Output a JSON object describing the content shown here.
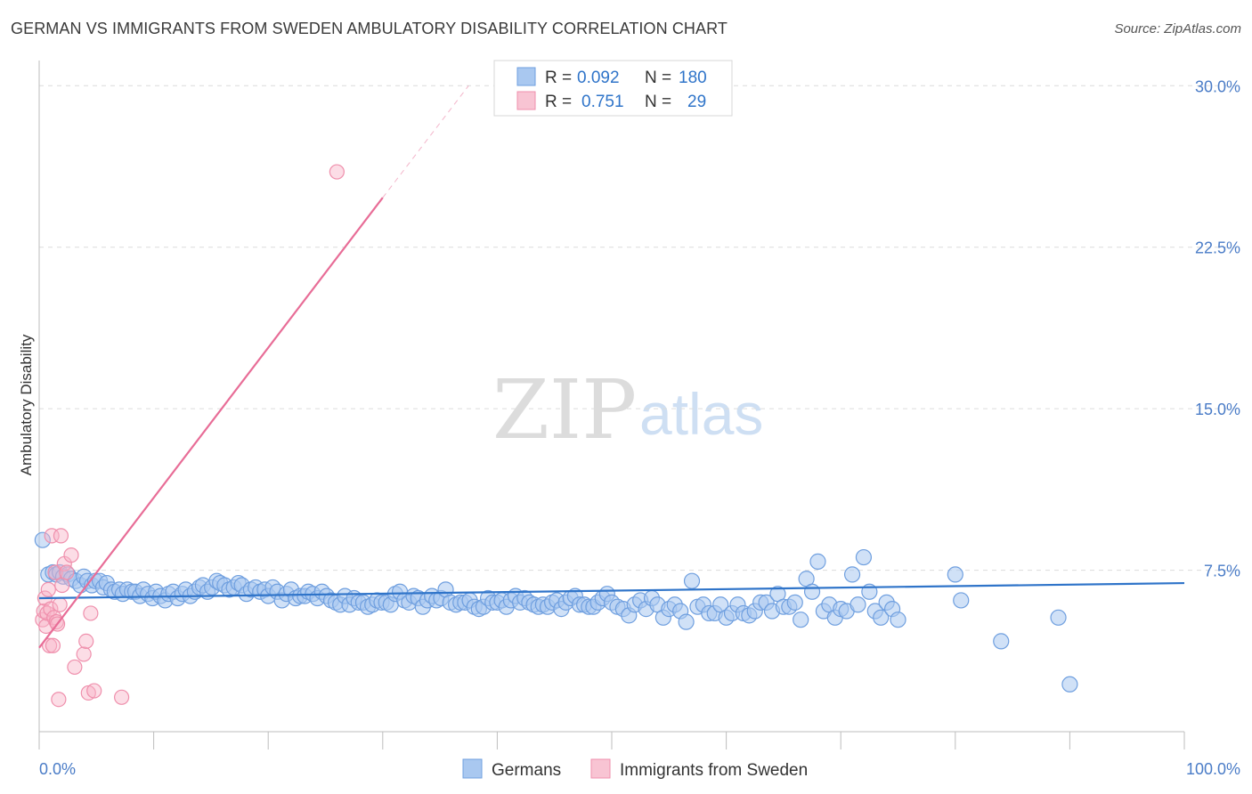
{
  "header": {
    "title": "GERMAN VS IMMIGRANTS FROM SWEDEN AMBULATORY DISABILITY CORRELATION CHART",
    "source": "Source: ZipAtlas.com"
  },
  "watermark": {
    "zip": "ZIP",
    "atlas": "atlas"
  },
  "colors": {
    "blue_fill": "#a9c8f0",
    "blue_stroke": "#6f9fdf",
    "blue_line": "#2f74c9",
    "pink_fill": "#f8b4c8",
    "pink_stroke": "#ef8fac",
    "pink_line": "#e86d97",
    "tick_text": "#4a7cc7",
    "grid": "#dcdcdc"
  },
  "legend": {
    "rows": [
      {
        "r_label": "R =",
        "r_value": "0.092",
        "n_label": "N =",
        "n_value": "180"
      },
      {
        "r_label": "R =",
        "r_value": "0.751",
        "n_label": "N =",
        "n_value": "29"
      }
    ]
  },
  "bottom_legend": {
    "germans": "Germans",
    "sweden": "Immigrants from Sweden"
  },
  "chart_data": {
    "type": "scatter",
    "title": "GERMAN VS IMMIGRANTS FROM SWEDEN AMBULATORY DISABILITY CORRELATION CHART",
    "xlabel": "",
    "ylabel": "Ambulatory Disability",
    "xlim": [
      0,
      100
    ],
    "ylim": [
      0,
      31.5
    ],
    "x_tick_labels": [
      "0.0%",
      "100.0%"
    ],
    "y_ticks": [
      7.5,
      15.0,
      22.5,
      30.0
    ],
    "y_tick_labels": [
      "7.5%",
      "15.0%",
      "22.5%",
      "30.0%"
    ],
    "grid": true,
    "legend_position": "top-center",
    "series": [
      {
        "name": "Germans",
        "color": "#6f9fdf",
        "trend": {
          "x": [
            0,
            100
          ],
          "y": [
            6.2,
            6.9
          ]
        },
        "points": [
          [
            0.3,
            8.9
          ],
          [
            0.8,
            7.3
          ],
          [
            1.2,
            7.4
          ],
          [
            1.5,
            7.3
          ],
          [
            1.8,
            7.4
          ],
          [
            2.1,
            7.2
          ],
          [
            2.5,
            7.3
          ],
          [
            2.8,
            7.1
          ],
          [
            3.2,
            7.0
          ],
          [
            3.6,
            6.8
          ],
          [
            3.9,
            7.2
          ],
          [
            4.2,
            7.0
          ],
          [
            4.6,
            6.8
          ],
          [
            4.9,
            7.0
          ],
          [
            5.3,
            7.0
          ],
          [
            5.6,
            6.7
          ],
          [
            5.9,
            6.9
          ],
          [
            6.3,
            6.6
          ],
          [
            6.6,
            6.5
          ],
          [
            7.0,
            6.6
          ],
          [
            7.3,
            6.4
          ],
          [
            7.7,
            6.6
          ],
          [
            8.1,
            6.5
          ],
          [
            8.4,
            6.5
          ],
          [
            8.8,
            6.3
          ],
          [
            9.1,
            6.6
          ],
          [
            9.5,
            6.4
          ],
          [
            9.9,
            6.2
          ],
          [
            10.2,
            6.5
          ],
          [
            10.6,
            6.3
          ],
          [
            11.0,
            6.1
          ],
          [
            11.3,
            6.4
          ],
          [
            11.7,
            6.5
          ],
          [
            12.1,
            6.2
          ],
          [
            12.5,
            6.4
          ],
          [
            12.8,
            6.6
          ],
          [
            13.2,
            6.3
          ],
          [
            13.6,
            6.5
          ],
          [
            14.0,
            6.7
          ],
          [
            14.3,
            6.8
          ],
          [
            14.7,
            6.5
          ],
          [
            15.1,
            6.7
          ],
          [
            15.5,
            7.0
          ],
          [
            15.8,
            6.9
          ],
          [
            16.2,
            6.8
          ],
          [
            16.6,
            6.6
          ],
          [
            17.0,
            6.7
          ],
          [
            17.4,
            6.9
          ],
          [
            17.7,
            6.8
          ],
          [
            18.1,
            6.4
          ],
          [
            18.5,
            6.6
          ],
          [
            18.9,
            6.7
          ],
          [
            19.3,
            6.5
          ],
          [
            19.7,
            6.6
          ],
          [
            20.0,
            6.3
          ],
          [
            20.4,
            6.7
          ],
          [
            20.8,
            6.5
          ],
          [
            21.2,
            6.1
          ],
          [
            21.6,
            6.4
          ],
          [
            22.0,
            6.6
          ],
          [
            22.4,
            6.2
          ],
          [
            22.8,
            6.3
          ],
          [
            23.2,
            6.3
          ],
          [
            23.5,
            6.5
          ],
          [
            23.9,
            6.4
          ],
          [
            24.3,
            6.2
          ],
          [
            24.7,
            6.5
          ],
          [
            25.1,
            6.3
          ],
          [
            25.5,
            6.1
          ],
          [
            25.9,
            6.0
          ],
          [
            26.3,
            5.9
          ],
          [
            26.7,
            6.3
          ],
          [
            27.1,
            5.9
          ],
          [
            27.5,
            6.2
          ],
          [
            27.9,
            6.0
          ],
          [
            28.3,
            6.0
          ],
          [
            28.7,
            5.8
          ],
          [
            29.1,
            5.9
          ],
          [
            29.5,
            6.1
          ],
          [
            29.9,
            6.0
          ],
          [
            30.3,
            6.0
          ],
          [
            30.7,
            5.9
          ],
          [
            31.1,
            6.4
          ],
          [
            31.5,
            6.5
          ],
          [
            31.9,
            6.1
          ],
          [
            32.3,
            6.0
          ],
          [
            32.7,
            6.3
          ],
          [
            33.1,
            6.2
          ],
          [
            33.5,
            5.8
          ],
          [
            33.9,
            6.1
          ],
          [
            34.3,
            6.3
          ],
          [
            34.7,
            6.1
          ],
          [
            35.1,
            6.2
          ],
          [
            35.5,
            6.6
          ],
          [
            35.9,
            6.0
          ],
          [
            36.4,
            5.9
          ],
          [
            36.8,
            6.0
          ],
          [
            37.2,
            6.0
          ],
          [
            37.6,
            6.1
          ],
          [
            38.0,
            5.8
          ],
          [
            38.4,
            5.7
          ],
          [
            38.8,
            5.8
          ],
          [
            39.2,
            6.2
          ],
          [
            39.6,
            6.0
          ],
          [
            40.0,
            6.0
          ],
          [
            40.4,
            6.1
          ],
          [
            40.8,
            5.8
          ],
          [
            41.2,
            6.1
          ],
          [
            41.6,
            6.3
          ],
          [
            42.0,
            6.0
          ],
          [
            42.4,
            6.2
          ],
          [
            42.8,
            6.0
          ],
          [
            43.2,
            5.9
          ],
          [
            43.6,
            5.8
          ],
          [
            44.0,
            5.9
          ],
          [
            44.4,
            5.8
          ],
          [
            44.8,
            6.0
          ],
          [
            45.2,
            6.1
          ],
          [
            45.6,
            5.7
          ],
          [
            46.0,
            6.0
          ],
          [
            46.4,
            6.2
          ],
          [
            46.8,
            6.3
          ],
          [
            47.2,
            5.9
          ],
          [
            47.6,
            5.9
          ],
          [
            48.0,
            5.8
          ],
          [
            48.4,
            5.8
          ],
          [
            48.8,
            6.0
          ],
          [
            49.2,
            6.2
          ],
          [
            49.6,
            6.4
          ],
          [
            50.0,
            6.0
          ],
          [
            50.5,
            5.8
          ],
          [
            51.0,
            5.7
          ],
          [
            51.5,
            5.4
          ],
          [
            52.0,
            5.9
          ],
          [
            52.5,
            6.1
          ],
          [
            53.0,
            5.7
          ],
          [
            53.5,
            6.2
          ],
          [
            54.0,
            5.9
          ],
          [
            54.5,
            5.3
          ],
          [
            55.0,
            5.7
          ],
          [
            55.5,
            5.9
          ],
          [
            56.0,
            5.6
          ],
          [
            56.5,
            5.1
          ],
          [
            57.0,
            7.0
          ],
          [
            57.5,
            5.8
          ],
          [
            58.0,
            5.9
          ],
          [
            58.5,
            5.5
          ],
          [
            59.0,
            5.5
          ],
          [
            59.5,
            5.9
          ],
          [
            60.0,
            5.3
          ],
          [
            60.5,
            5.5
          ],
          [
            61.0,
            5.9
          ],
          [
            61.5,
            5.5
          ],
          [
            62.0,
            5.4
          ],
          [
            62.5,
            5.6
          ],
          [
            63.0,
            6.0
          ],
          [
            63.5,
            6.0
          ],
          [
            64.0,
            5.6
          ],
          [
            64.5,
            6.4
          ],
          [
            65.0,
            5.8
          ],
          [
            65.5,
            5.8
          ],
          [
            66.0,
            6.0
          ],
          [
            66.5,
            5.2
          ],
          [
            67.0,
            7.1
          ],
          [
            67.5,
            6.5
          ],
          [
            68.0,
            7.9
          ],
          [
            68.5,
            5.6
          ],
          [
            69.0,
            5.9
          ],
          [
            69.5,
            5.3
          ],
          [
            70.0,
            5.7
          ],
          [
            70.5,
            5.6
          ],
          [
            71.0,
            7.3
          ],
          [
            71.5,
            5.9
          ],
          [
            72.0,
            8.1
          ],
          [
            72.5,
            6.5
          ],
          [
            73.0,
            5.6
          ],
          [
            73.5,
            5.3
          ],
          [
            74.0,
            6.0
          ],
          [
            74.5,
            5.7
          ],
          [
            75.0,
            5.2
          ],
          [
            80.0,
            7.3
          ],
          [
            80.5,
            6.1
          ],
          [
            84.0,
            4.2
          ],
          [
            89.0,
            5.3
          ],
          [
            90.0,
            2.2
          ]
        ]
      },
      {
        "name": "Immigrants from Sweden",
        "color": "#ef8fac",
        "trend": {
          "x": [
            0,
            30.0
          ],
          "y": [
            3.9,
            24.8
          ]
        },
        "trend_dashed": {
          "x": [
            30.0,
            37.5
          ],
          "y": [
            24.8,
            30.0
          ]
        },
        "points": [
          [
            0.3,
            5.2
          ],
          [
            0.4,
            5.6
          ],
          [
            0.5,
            6.2
          ],
          [
            0.6,
            4.9
          ],
          [
            0.7,
            5.5
          ],
          [
            0.8,
            6.6
          ],
          [
            0.9,
            4.0
          ],
          [
            1.0,
            5.7
          ],
          [
            1.1,
            9.1
          ],
          [
            1.2,
            4.0
          ],
          [
            1.3,
            5.3
          ],
          [
            1.4,
            7.4
          ],
          [
            1.5,
            5.1
          ],
          [
            1.6,
            5.0
          ],
          [
            1.7,
            1.5
          ],
          [
            1.8,
            5.9
          ],
          [
            1.9,
            9.1
          ],
          [
            2.0,
            6.8
          ],
          [
            2.2,
            7.8
          ],
          [
            2.4,
            7.4
          ],
          [
            2.8,
            8.2
          ],
          [
            3.1,
            3.0
          ],
          [
            3.9,
            3.6
          ],
          [
            4.1,
            4.2
          ],
          [
            4.3,
            1.8
          ],
          [
            4.5,
            5.5
          ],
          [
            4.8,
            1.9
          ],
          [
            7.2,
            1.6
          ],
          [
            26.0,
            26.0
          ]
        ]
      }
    ]
  }
}
